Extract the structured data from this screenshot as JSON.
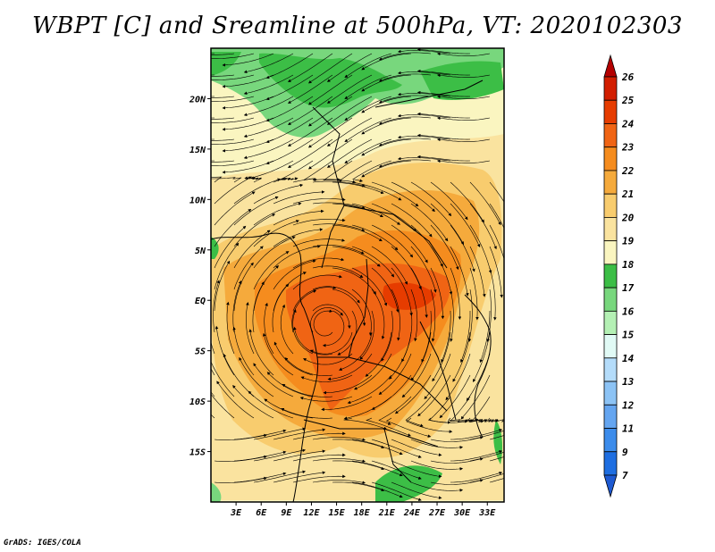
{
  "title": "WBPT [C] and Sreamline at 500hPa, VT: 2020102303",
  "credit": "GrADS: IGES/COLA",
  "map": {
    "lat_ticks": [
      {
        "label": "20N",
        "lat": 20
      },
      {
        "label": "15N",
        "lat": 15
      },
      {
        "label": "10N",
        "lat": 10
      },
      {
        "label": "5N",
        "lat": 5
      },
      {
        "label": "EQ",
        "lat": 0
      },
      {
        "label": "5S",
        "lat": -5
      },
      {
        "label": "10S",
        "lat": -10
      },
      {
        "label": "15S",
        "lat": -15
      }
    ],
    "lon_ticks": [
      {
        "label": "3E",
        "lon": 3
      },
      {
        "label": "6E",
        "lon": 6
      },
      {
        "label": "9E",
        "lon": 9
      },
      {
        "label": "12E",
        "lon": 12
      },
      {
        "label": "15E",
        "lon": 15
      },
      {
        "label": "18E",
        "lon": 18
      },
      {
        "label": "21E",
        "lon": 21
      },
      {
        "label": "24E",
        "lon": 24
      },
      {
        "label": "27E",
        "lon": 27
      },
      {
        "label": "30E",
        "lon": 30
      },
      {
        "label": "33E",
        "lon": 33
      }
    ],
    "lon_range": [
      0,
      35
    ],
    "lat_range": [
      -20,
      25
    ]
  },
  "colorbar": {
    "levels": [
      {
        "label": "26",
        "color": "#b40000"
      },
      {
        "label": "25",
        "color": "#d21e00"
      },
      {
        "label": "24",
        "color": "#e63c00"
      },
      {
        "label": "23",
        "color": "#f06414"
      },
      {
        "label": "22",
        "color": "#f58c1e"
      },
      {
        "label": "21",
        "color": "#f5aa3c"
      },
      {
        "label": "20",
        "color": "#f8cc6e"
      },
      {
        "label": "19",
        "color": "#fae39f"
      },
      {
        "label": "18",
        "color": "#faf5c0"
      },
      {
        "label": "17",
        "color": "#3cbe46"
      },
      {
        "label": "16",
        "color": "#78d77d"
      },
      {
        "label": "15",
        "color": "#b4f0b4"
      },
      {
        "label": "14",
        "color": "#e1faf5"
      },
      {
        "label": "13",
        "color": "#b4dcfa"
      },
      {
        "label": "12",
        "color": "#8cc3f5"
      },
      {
        "label": "11",
        "color": "#64a5f0"
      },
      {
        "label": "9",
        "color": "#3c8ceb"
      },
      {
        "label": "7",
        "color": "#1e6ee1"
      }
    ],
    "bottom_color": "#1e5ad2"
  }
}
